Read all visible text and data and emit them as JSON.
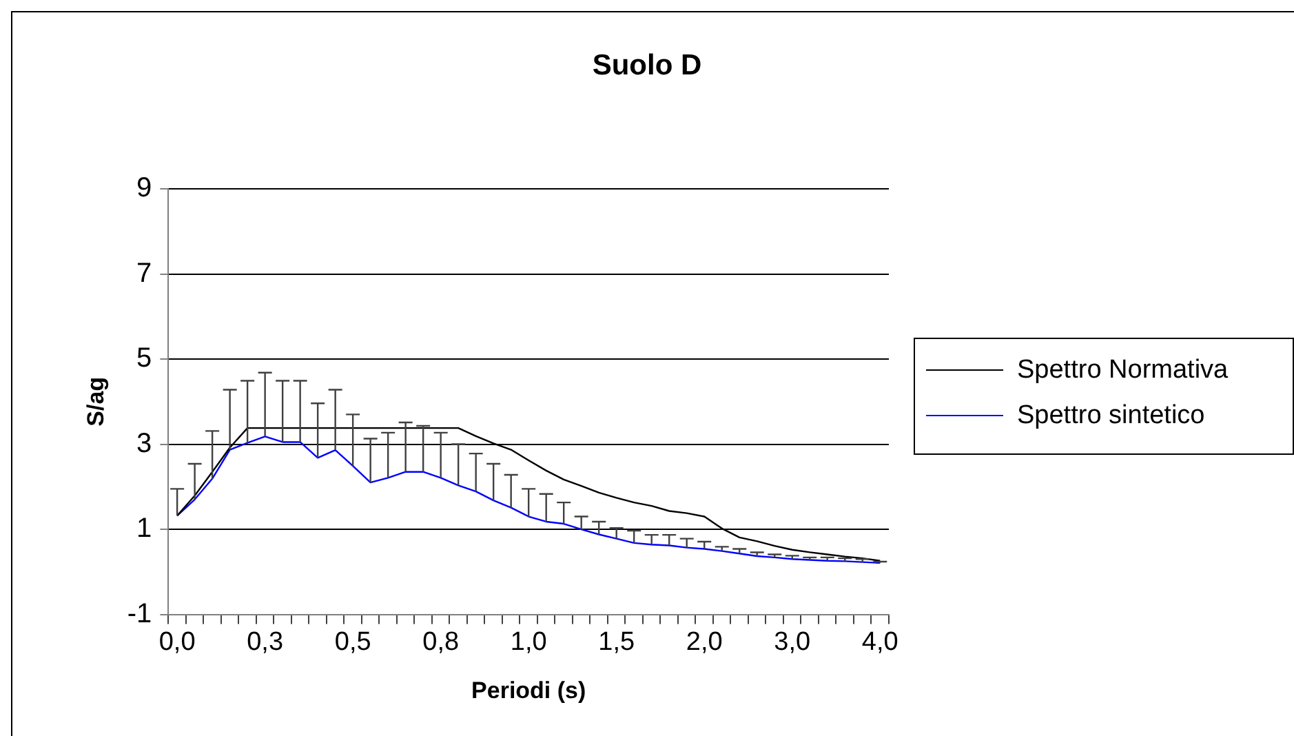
{
  "chart_data": {
    "type": "line",
    "title": "Suolo D",
    "xlabel": "Periodi (s)",
    "ylabel": "S/ag",
    "categories": [
      "0,0",
      null,
      null,
      null,
      null,
      "0,3",
      null,
      null,
      null,
      null,
      "0,5",
      null,
      null,
      null,
      null,
      "0,8",
      null,
      null,
      null,
      null,
      "1,0",
      null,
      null,
      null,
      null,
      "1,5",
      null,
      null,
      null,
      null,
      "2,0",
      null,
      null,
      null,
      null,
      "3,0",
      null,
      null,
      null,
      null,
      "4,0"
    ],
    "series": [
      {
        "name": "Spettro Normativa",
        "color": "#000000",
        "values": [
          1.32,
          1.79,
          2.35,
          2.92,
          3.38,
          3.38,
          3.38,
          3.38,
          3.38,
          3.38,
          3.38,
          3.38,
          3.38,
          3.38,
          3.38,
          3.38,
          3.38,
          3.19,
          3.02,
          2.87,
          2.62,
          2.38,
          2.17,
          2.02,
          1.86,
          1.74,
          1.63,
          1.55,
          1.43,
          1.38,
          1.3,
          1.02,
          0.81,
          0.72,
          0.61,
          0.52,
          0.46,
          0.41,
          0.36,
          0.32,
          0.26
        ]
      },
      {
        "name": "Spettro sintetico",
        "color": "#0000ff",
        "values": [
          1.32,
          1.7,
          2.19,
          2.87,
          3.03,
          3.18,
          3.05,
          3.05,
          2.68,
          2.86,
          2.49,
          2.1,
          2.21,
          2.35,
          2.35,
          2.21,
          2.03,
          1.89,
          1.68,
          1.51,
          1.3,
          1.18,
          1.13,
          1.0,
          0.88,
          0.78,
          0.68,
          0.64,
          0.62,
          0.57,
          0.54,
          0.49,
          0.43,
          0.37,
          0.34,
          0.3,
          0.28,
          0.26,
          0.25,
          0.23,
          0.21
        ],
        "errors": [
          [
            1.32,
            1.95
          ],
          [
            1.7,
            2.54
          ],
          [
            2.19,
            3.31
          ],
          [
            2.87,
            4.28
          ],
          [
            3.03,
            4.49
          ],
          [
            3.18,
            4.68
          ],
          [
            3.05,
            4.49
          ],
          [
            3.05,
            4.49
          ],
          [
            2.68,
            3.96
          ],
          [
            2.86,
            4.28
          ],
          [
            2.49,
            3.7
          ],
          [
            2.1,
            3.13
          ],
          [
            2.21,
            3.27
          ],
          [
            2.35,
            3.51
          ],
          [
            2.35,
            3.43
          ],
          [
            2.21,
            3.27
          ],
          [
            2.03,
            3.0
          ],
          [
            1.89,
            2.78
          ],
          [
            1.68,
            2.54
          ],
          [
            1.51,
            2.28
          ],
          [
            1.3,
            1.95
          ],
          [
            1.18,
            1.83
          ],
          [
            1.13,
            1.63
          ],
          [
            1.0,
            1.3
          ],
          [
            0.88,
            1.18
          ],
          [
            0.78,
            1.03
          ],
          [
            0.68,
            0.97
          ],
          [
            0.64,
            0.87
          ],
          [
            0.62,
            0.87
          ],
          [
            0.57,
            0.78
          ],
          [
            0.54,
            0.71
          ],
          [
            0.49,
            0.59
          ],
          [
            0.43,
            0.54
          ],
          [
            0.37,
            0.46
          ],
          [
            0.34,
            0.41
          ],
          [
            0.3,
            0.38
          ],
          [
            0.28,
            0.34
          ],
          [
            0.26,
            0.34
          ],
          [
            0.25,
            0.32
          ],
          [
            0.23,
            0.3
          ],
          [
            0.21,
            0.24
          ]
        ]
      }
    ],
    "ylim": [
      -1,
      9
    ],
    "yticks": [
      -1,
      1,
      3,
      5,
      7,
      9
    ],
    "grid": "y",
    "legend": "right",
    "marker": "none",
    "line_style": "solid"
  }
}
